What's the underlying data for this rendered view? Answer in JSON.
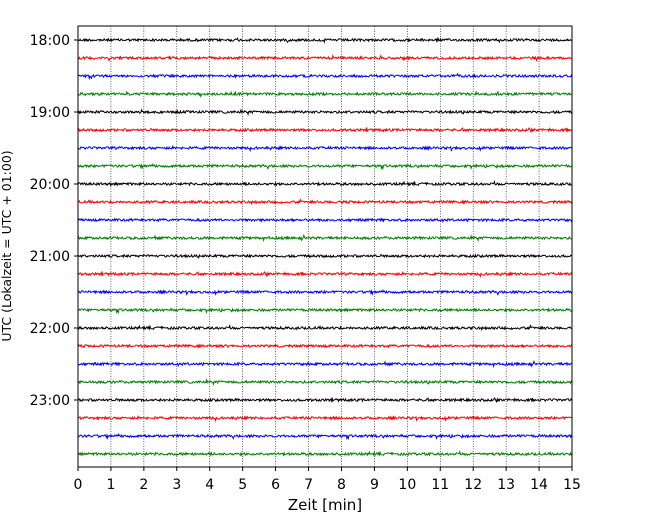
{
  "chart_data": {
    "type": "line",
    "title": "",
    "xlabel": "Zeit  [min]",
    "ylabel": "UTC (Lokalzeit = UTC + 01:00)",
    "xlim": [
      0,
      15
    ],
    "x_ticks": [
      "0",
      "1",
      "2",
      "3",
      "4",
      "5",
      "6",
      "7",
      "8",
      "9",
      "10",
      "11",
      "12",
      "13",
      "14",
      "15"
    ],
    "y_ticks": [
      {
        "label": "18:00",
        "row": 0
      },
      {
        "label": "19:00",
        "row": 4
      },
      {
        "label": "20:00",
        "row": 8
      },
      {
        "label": "21:00",
        "row": 12
      },
      {
        "label": "22:00",
        "row": 16
      },
      {
        "label": "23:00",
        "row": 20
      }
    ],
    "grid_x": true,
    "row_colors": [
      "#000000",
      "#ff0000",
      "#0000ff",
      "#008000"
    ],
    "traces": [
      {
        "start": "18:00",
        "color": "#000000"
      },
      {
        "start": "18:15",
        "color": "#ff0000"
      },
      {
        "start": "18:30",
        "color": "#0000ff"
      },
      {
        "start": "18:45",
        "color": "#008000"
      },
      {
        "start": "19:00",
        "color": "#000000"
      },
      {
        "start": "19:15",
        "color": "#ff0000"
      },
      {
        "start": "19:30",
        "color": "#0000ff"
      },
      {
        "start": "19:45",
        "color": "#008000"
      },
      {
        "start": "20:00",
        "color": "#000000"
      },
      {
        "start": "20:15",
        "color": "#ff0000"
      },
      {
        "start": "20:30",
        "color": "#0000ff"
      },
      {
        "start": "20:45",
        "color": "#008000"
      },
      {
        "start": "21:00",
        "color": "#000000"
      },
      {
        "start": "21:15",
        "color": "#ff0000"
      },
      {
        "start": "21:30",
        "color": "#0000ff"
      },
      {
        "start": "21:45",
        "color": "#008000"
      },
      {
        "start": "22:00",
        "color": "#000000"
      },
      {
        "start": "22:15",
        "color": "#ff0000"
      },
      {
        "start": "22:30",
        "color": "#0000ff"
      },
      {
        "start": "22:45",
        "color": "#008000"
      },
      {
        "start": "23:00",
        "color": "#000000"
      },
      {
        "start": "23:15",
        "color": "#ff0000"
      },
      {
        "start": "23:30",
        "color": "#0000ff"
      },
      {
        "start": "23:45",
        "color": "#008000"
      }
    ]
  }
}
